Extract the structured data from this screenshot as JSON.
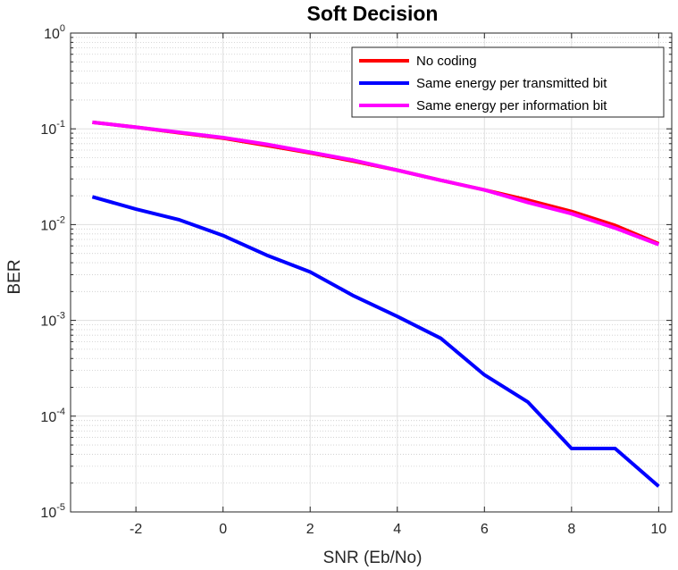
{
  "chart_data": {
    "type": "line",
    "title": "Soft Decision",
    "xlabel": "SNR (Eb/No)",
    "ylabel": "BER",
    "xlim": [
      -3.5,
      10.3
    ],
    "ylim": [
      1e-05,
      1
    ],
    "yscale": "log",
    "grid": true,
    "legend_position": "top-right",
    "x_ticks": [
      -2,
      0,
      2,
      4,
      6,
      8,
      10
    ],
    "y_ticks": [
      {
        "value": 1e-05,
        "mantissa": "10",
        "exp": "-5"
      },
      {
        "value": 0.0001,
        "mantissa": "10",
        "exp": "-4"
      },
      {
        "value": 0.001,
        "mantissa": "10",
        "exp": "-3"
      },
      {
        "value": 0.01,
        "mantissa": "10",
        "exp": "-2"
      },
      {
        "value": 0.1,
        "mantissa": "10",
        "exp": "-1"
      },
      {
        "value": 1,
        "mantissa": "10",
        "exp": "0"
      }
    ],
    "x": [
      -3,
      -2,
      -1,
      0,
      1,
      2,
      3,
      4,
      5,
      6,
      7,
      8,
      9,
      10
    ],
    "series": [
      {
        "name": "No coding",
        "color": "#ff0000",
        "values": [
          0.117,
          0.104,
          0.091,
          0.08,
          0.067,
          0.056,
          0.046,
          0.037,
          0.029,
          0.023,
          0.018,
          0.0137,
          0.0098,
          0.0063
        ]
      },
      {
        "name": "Same energy per transmitted bit",
        "color": "#0000ff",
        "values": [
          0.0195,
          0.0145,
          0.0112,
          0.0077,
          0.0048,
          0.0032,
          0.0018,
          0.0011,
          0.00065,
          0.00027,
          0.00014,
          4.6e-05,
          4.6e-05,
          1.85e-05
        ]
      },
      {
        "name": "Same energy per information bit",
        "color": "#ff00ff",
        "values": [
          0.117,
          0.104,
          0.092,
          0.081,
          0.069,
          0.057,
          0.047,
          0.037,
          0.029,
          0.023,
          0.017,
          0.013,
          0.0092,
          0.0062
        ]
      }
    ]
  }
}
